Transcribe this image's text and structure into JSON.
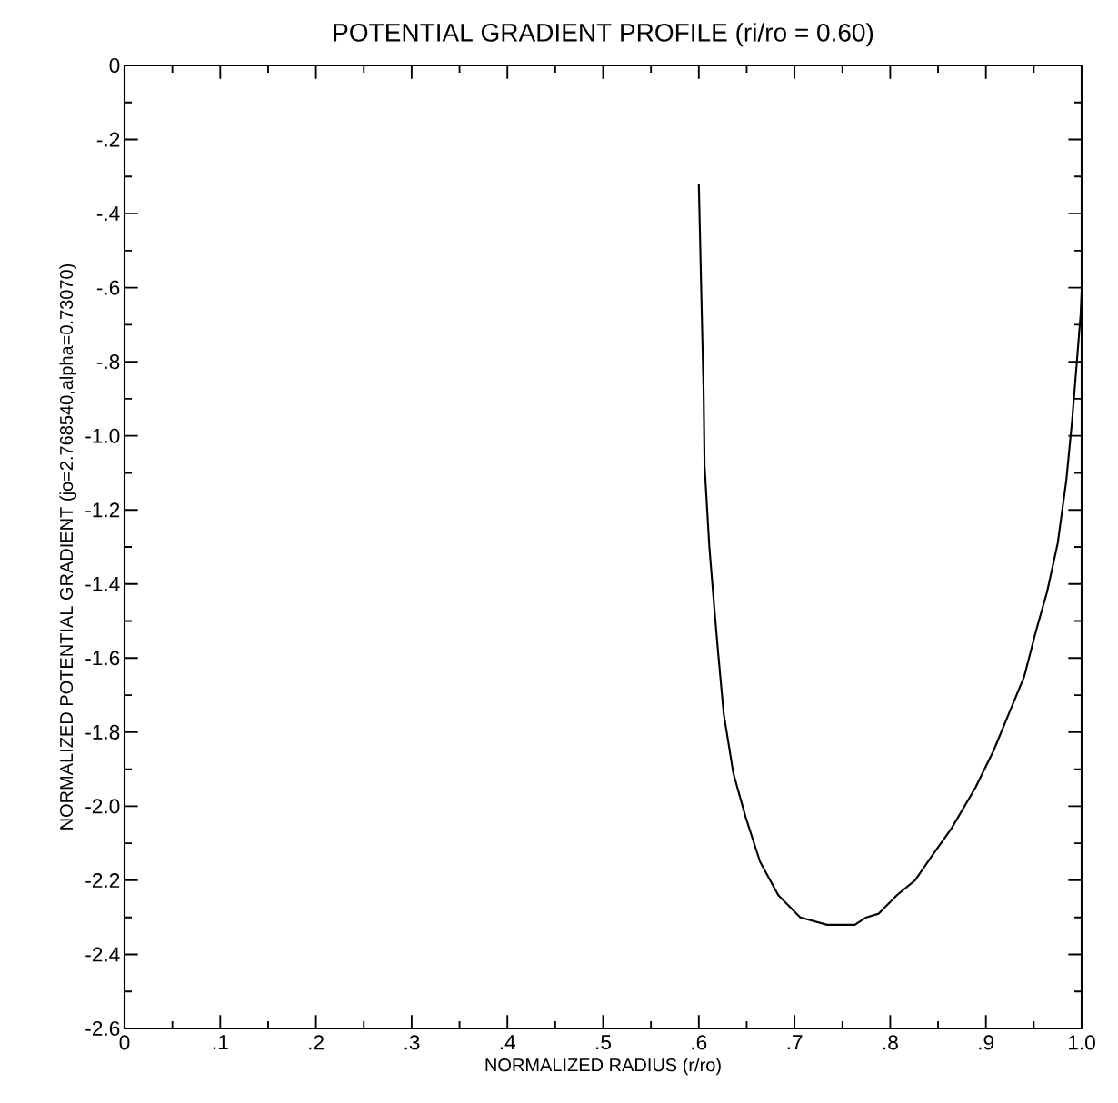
{
  "chart_data": {
    "type": "line",
    "title": "POTENTIAL GRADIENT PROFILE (ri/ro = 0.60)",
    "xlabel": "NORMALIZED RADIUS (r/ro)",
    "ylabel": "NORMALIZED POTENTIAL GRADIENT (jo=2.768540,alpha=0.73070)",
    "xlim": [
      0,
      1
    ],
    "ylim": [
      -2.6,
      0
    ],
    "xticks": [
      0,
      {
        "value": 0.1,
        "label": ".1"
      },
      {
        "value": 0.2,
        "label": ".2"
      },
      {
        "value": 0.3,
        "label": ".3"
      },
      {
        "value": 0.4,
        "label": ".4"
      },
      {
        "value": 0.5,
        "label": ".5"
      },
      {
        "value": 0.6,
        "label": ".6"
      },
      {
        "value": 0.7,
        "label": ".7"
      },
      {
        "value": 0.8,
        "label": ".8"
      },
      {
        "value": 0.9,
        "label": ".9"
      },
      {
        "value": 1,
        "label": "1.0"
      }
    ],
    "yticks": [
      0,
      {
        "value": -0.2,
        "label": "-.2"
      },
      {
        "value": -0.4,
        "label": "-.4"
      },
      {
        "value": -0.6,
        "label": "-.6"
      },
      {
        "value": -0.8,
        "label": "-.8"
      },
      {
        "value": -1.0,
        "label": "-1.0"
      },
      -1.2,
      -1.4,
      -1.6,
      -1.8,
      {
        "value": -2.0,
        "label": "-2.0"
      },
      -2.2,
      -2.4,
      -2.6
    ],
    "series": [
      {
        "color": "#000000",
        "x": [
          0.6,
          0.603,
          0.605,
          0.606,
          0.611,
          0.617,
          0.62,
          0.626,
          0.636,
          0.649,
          0.664,
          0.683,
          0.706,
          0.734,
          0.747,
          0.763,
          0.775,
          0.788,
          0.807,
          0.826,
          0.842,
          0.864,
          0.889,
          0.908,
          0.924,
          0.94,
          0.952,
          0.964,
          0.975,
          0.984,
          0.99,
          0.995,
          0.999,
          1.0
        ],
        "values": [
          -0.32,
          -0.66,
          -0.88,
          -1.08,
          -1.3,
          -1.49,
          -1.58,
          -1.75,
          -1.91,
          -2.03,
          -2.15,
          -2.24,
          -2.3,
          -2.32,
          -2.32,
          -2.32,
          -2.3,
          -2.29,
          -2.24,
          -2.2,
          -2.14,
          -2.06,
          -1.95,
          -1.85,
          -1.75,
          -1.65,
          -1.53,
          -1.42,
          -1.29,
          -1.12,
          -0.96,
          -0.8,
          -0.67,
          -0.61
        ]
      }
    ]
  }
}
